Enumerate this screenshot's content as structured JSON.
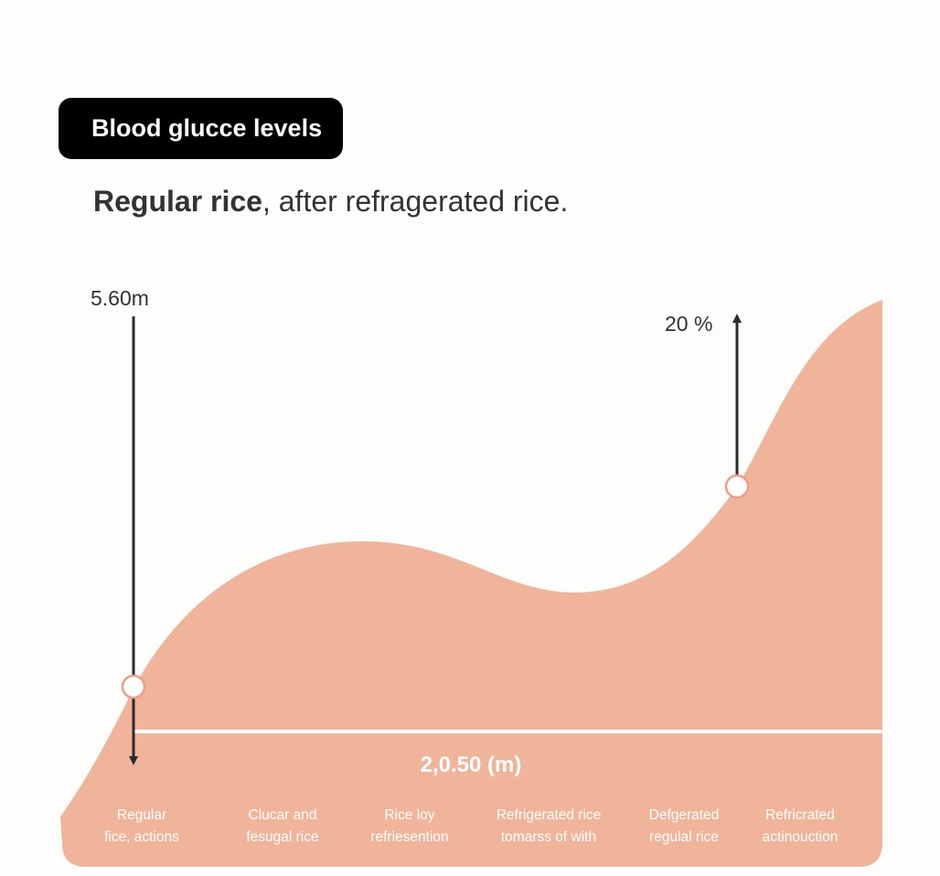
{
  "header": {
    "badge": "Blood glucce levels",
    "subtitle_bold": "Regular rice",
    "subtitle_rest": ", after refragerated  rice."
  },
  "chart_data": {
    "type": "area",
    "categories": [
      [
        "Regular",
        "fice, actions"
      ],
      [
        "Clucar and",
        "fesugal rice"
      ],
      [
        "Rice loy",
        "refriesention"
      ],
      [
        "Refrigerated rice",
        "tomarss of with"
      ],
      [
        "Defgerated",
        "regulal rice"
      ],
      [
        "Refricrated",
        "actinouction"
      ]
    ],
    "annotations": {
      "left_value": "5.60m",
      "right_value": "20 %",
      "baseline_label": "2,0.50 (m)"
    },
    "colors": {
      "fill": "#f0b49a",
      "line": "#ffffff",
      "arrow": "#2b2b2b",
      "marker_stroke": "#ec9d84"
    },
    "grid": false,
    "legend": "none"
  }
}
